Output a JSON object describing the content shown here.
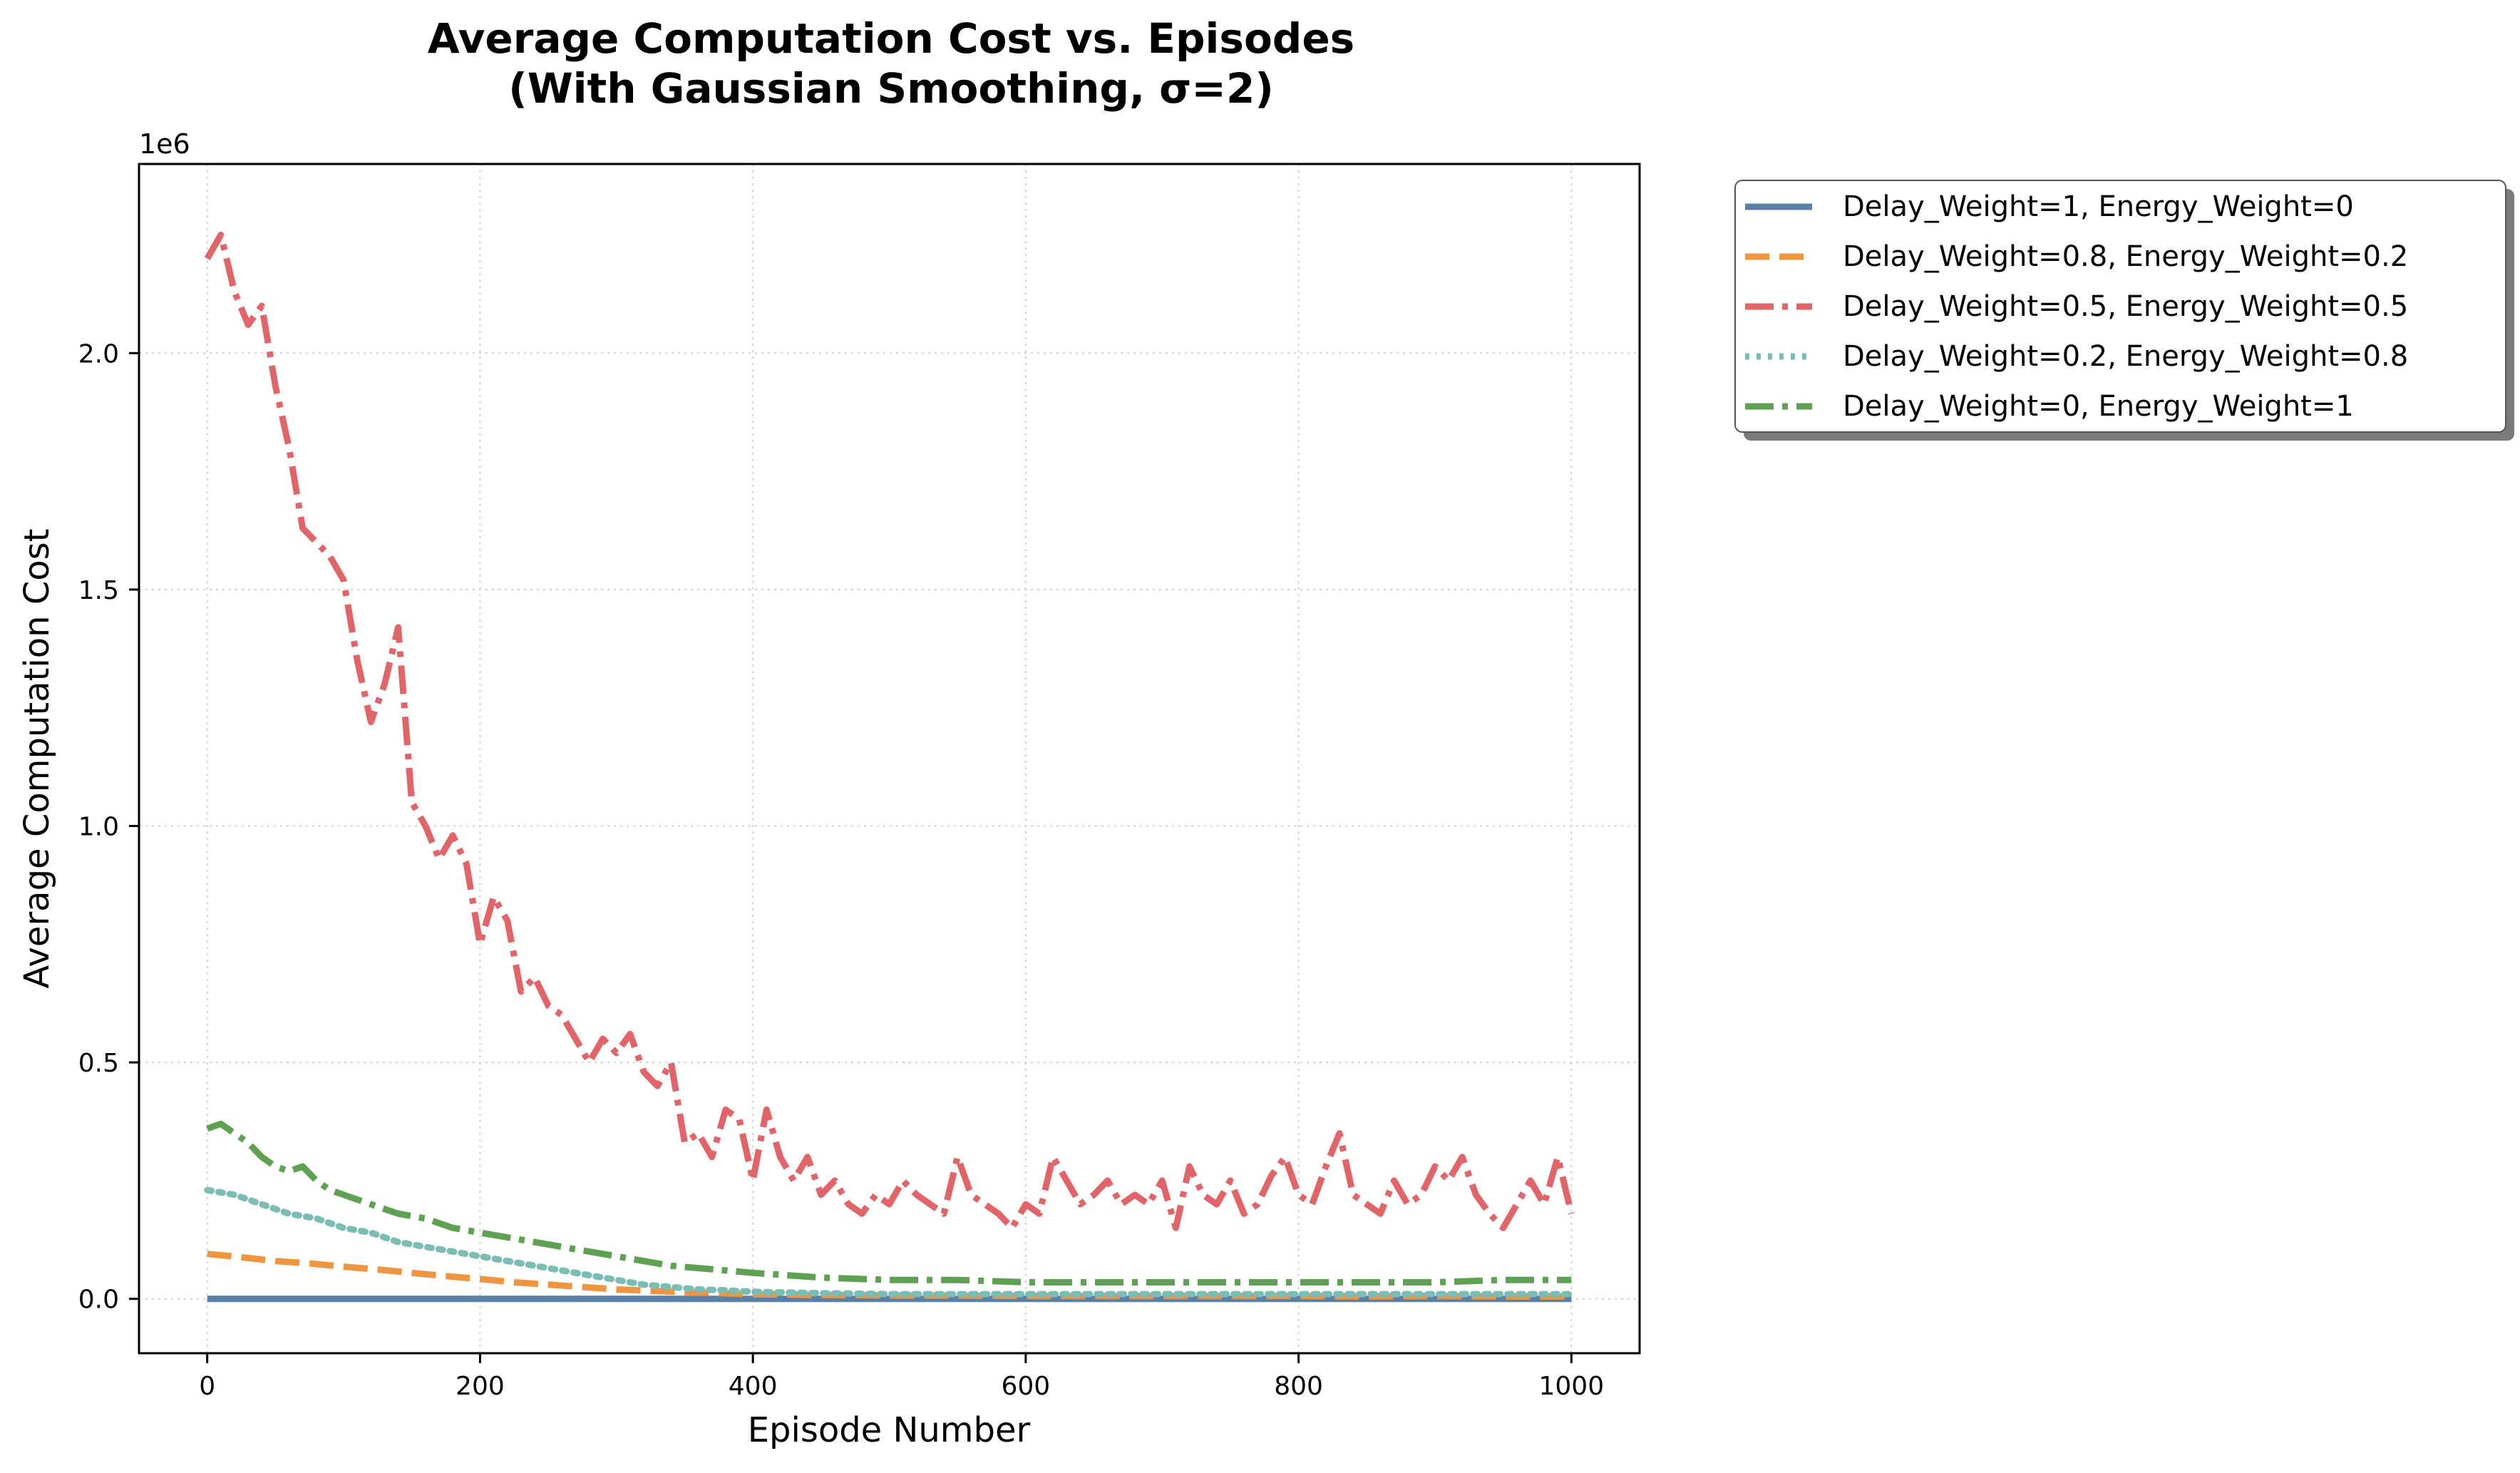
{
  "chart_data": {
    "type": "line",
    "title_line1": "Average Computation Cost vs. Episodes",
    "title_line2": "(With Gaussian Smoothing, σ=2)",
    "xlabel": "Episode Number",
    "ylabel": "Average Computation Cost",
    "y_offset_label": "1e6",
    "xlim": [
      -50,
      1050
    ],
    "ylim": [
      -0.115,
      2.4
    ],
    "x_unit_note": "episodes",
    "y_scale_factor": 1000000,
    "xticks": [
      0,
      200,
      400,
      600,
      800,
      1000
    ],
    "xtick_labels": [
      "0",
      "200",
      "400",
      "600",
      "800",
      "1000"
    ],
    "yticks": [
      0.0,
      0.5,
      1.0,
      1.5,
      2.0
    ],
    "ytick_labels": [
      "0.0",
      "0.5",
      "1.0",
      "1.5",
      "2.0"
    ],
    "grid": true,
    "legend_position": "outside-right-top",
    "series": [
      {
        "name": "Delay_Weight=1, Energy_Weight=0",
        "color": "#5b80a8",
        "dash": "solid",
        "x": [
          0,
          1000
        ],
        "y": [
          0.0,
          0.0
        ]
      },
      {
        "name": "Delay_Weight=0.8, Energy_Weight=0.2",
        "color": "#f0953f",
        "dash": "dashed",
        "x": [
          0,
          25,
          50,
          75,
          100,
          125,
          150,
          175,
          200,
          225,
          250,
          275,
          300,
          325,
          350,
          375,
          400,
          425,
          450,
          475,
          500,
          550,
          600,
          650,
          700,
          750,
          800,
          850,
          900,
          950,
          1000
        ],
        "y": [
          0.095,
          0.088,
          0.08,
          0.075,
          0.068,
          0.062,
          0.055,
          0.048,
          0.042,
          0.035,
          0.03,
          0.025,
          0.02,
          0.017,
          0.014,
          0.012,
          0.01,
          0.009,
          0.008,
          0.008,
          0.007,
          0.007,
          0.006,
          0.006,
          0.006,
          0.006,
          0.006,
          0.005,
          0.006,
          0.005,
          0.005
        ]
      },
      {
        "name": "Delay_Weight=0.5, Energy_Weight=0.5",
        "color": "#e06468",
        "dash": "dashdot",
        "x": [
          0,
          10,
          20,
          30,
          40,
          50,
          60,
          70,
          80,
          90,
          100,
          110,
          120,
          130,
          140,
          150,
          160,
          170,
          180,
          190,
          200,
          210,
          220,
          230,
          240,
          250,
          260,
          270,
          280,
          290,
          300,
          310,
          320,
          330,
          340,
          350,
          360,
          370,
          380,
          390,
          400,
          410,
          420,
          430,
          440,
          450,
          460,
          470,
          480,
          490,
          500,
          510,
          520,
          530,
          540,
          550,
          560,
          570,
          580,
          590,
          600,
          610,
          620,
          630,
          640,
          650,
          660,
          670,
          680,
          690,
          700,
          710,
          720,
          730,
          740,
          750,
          760,
          770,
          780,
          790,
          800,
          810,
          820,
          830,
          840,
          850,
          860,
          870,
          880,
          890,
          900,
          910,
          920,
          930,
          940,
          950,
          960,
          970,
          980,
          990,
          1000
        ],
        "y": [
          2.2,
          2.25,
          2.13,
          2.06,
          2.1,
          1.93,
          1.8,
          1.63,
          1.6,
          1.57,
          1.52,
          1.35,
          1.22,
          1.3,
          1.42,
          1.05,
          1.0,
          0.93,
          0.98,
          0.92,
          0.75,
          0.85,
          0.8,
          0.65,
          0.68,
          0.62,
          0.6,
          0.55,
          0.5,
          0.55,
          0.52,
          0.56,
          0.48,
          0.45,
          0.5,
          0.33,
          0.35,
          0.3,
          0.4,
          0.38,
          0.25,
          0.4,
          0.3,
          0.25,
          0.3,
          0.22,
          0.25,
          0.2,
          0.18,
          0.22,
          0.2,
          0.25,
          0.22,
          0.2,
          0.18,
          0.3,
          0.22,
          0.2,
          0.18,
          0.15,
          0.2,
          0.18,
          0.3,
          0.25,
          0.2,
          0.22,
          0.25,
          0.2,
          0.22,
          0.2,
          0.25,
          0.15,
          0.28,
          0.22,
          0.2,
          0.25,
          0.18,
          0.2,
          0.26,
          0.3,
          0.22,
          0.2,
          0.28,
          0.35,
          0.22,
          0.2,
          0.18,
          0.25,
          0.2,
          0.22,
          0.28,
          0.25,
          0.3,
          0.22,
          0.18,
          0.15,
          0.2,
          0.25,
          0.2,
          0.3,
          0.18
        ]
      },
      {
        "name": "Delay_Weight=0.2, Energy_Weight=0.8",
        "color": "#7bbcb4",
        "dash": "dotted",
        "x": [
          0,
          20,
          40,
          60,
          80,
          100,
          120,
          140,
          160,
          180,
          200,
          220,
          240,
          260,
          280,
          300,
          320,
          340,
          360,
          380,
          400,
          450,
          500,
          550,
          600,
          650,
          700,
          750,
          800,
          850,
          900,
          950,
          1000
        ],
        "y": [
          0.23,
          0.22,
          0.2,
          0.18,
          0.17,
          0.15,
          0.14,
          0.12,
          0.11,
          0.1,
          0.09,
          0.08,
          0.07,
          0.06,
          0.05,
          0.04,
          0.03,
          0.025,
          0.02,
          0.018,
          0.015,
          0.012,
          0.01,
          0.01,
          0.01,
          0.01,
          0.01,
          0.01,
          0.01,
          0.01,
          0.01,
          0.01,
          0.01
        ]
      },
      {
        "name": "Delay_Weight=0, Energy_Weight=1",
        "color": "#5fa152",
        "dash": "dashdot",
        "x": [
          0,
          10,
          20,
          30,
          40,
          50,
          60,
          70,
          80,
          90,
          100,
          120,
          140,
          160,
          180,
          200,
          220,
          240,
          260,
          280,
          300,
          320,
          340,
          360,
          380,
          400,
          450,
          500,
          550,
          600,
          650,
          700,
          750,
          800,
          850,
          900,
          950,
          1000
        ],
        "y": [
          0.36,
          0.37,
          0.35,
          0.33,
          0.3,
          0.28,
          0.27,
          0.28,
          0.25,
          0.23,
          0.22,
          0.2,
          0.18,
          0.17,
          0.15,
          0.14,
          0.13,
          0.12,
          0.11,
          0.1,
          0.09,
          0.08,
          0.07,
          0.065,
          0.06,
          0.055,
          0.045,
          0.04,
          0.04,
          0.035,
          0.035,
          0.035,
          0.035,
          0.035,
          0.035,
          0.035,
          0.04,
          0.04
        ]
      }
    ]
  }
}
